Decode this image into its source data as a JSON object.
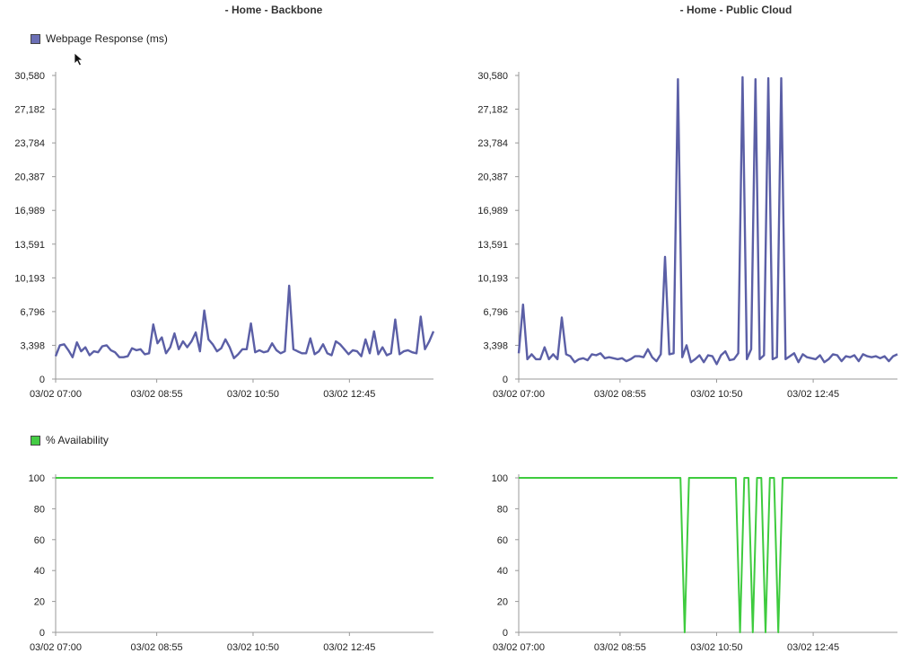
{
  "panels": [
    {
      "title": "- Home - Backbone"
    },
    {
      "title": "- Home - Public Cloud"
    }
  ],
  "legends": {
    "response": {
      "label": "Webpage Response (ms)",
      "color": "#6b6fb5"
    },
    "availability": {
      "label": "% Availability",
      "color": "#44cc44"
    }
  },
  "colors": {
    "response_line": "#5b5fa6",
    "availability_line": "#3ecb3e",
    "axis": "#999999"
  },
  "chart_data": [
    {
      "type": "line",
      "panel": "Backbone",
      "series": [
        {
          "name": "Webpage Response (ms)",
          "values": [
            2300,
            3400,
            3500,
            2900,
            2200,
            3700,
            2800,
            3200,
            2400,
            2800,
            2700,
            3300,
            3400,
            2900,
            2700,
            2200,
            2200,
            2300,
            3100,
            2900,
            3000,
            2500,
            2600,
            5500,
            3600,
            4200,
            2600,
            3200,
            4600,
            3000,
            3800,
            3200,
            3800,
            4700,
            2800,
            6900,
            4000,
            3500,
            2800,
            3100,
            4000,
            3200,
            2100,
            2500,
            3000,
            3000,
            5600,
            2700,
            2900,
            2700,
            2800,
            3600,
            2900,
            2600,
            2800,
            9400,
            3000,
            2800,
            2600,
            2600,
            4100,
            2500,
            2800,
            3500,
            2600,
            2400,
            3800,
            3500,
            3000,
            2500,
            2900,
            2800,
            2300,
            4000,
            2600,
            4800,
            2500,
            3200,
            2400,
            2600,
            6000,
            2500,
            2800,
            2900,
            2700,
            2600,
            6300,
            3000,
            3800,
            4800
          ]
        }
      ],
      "x_ticks": [
        "03/02 07:00",
        "03/02 08:55",
        "03/02 10:50",
        "03/02 12:45"
      ],
      "y_ticks": [
        "0",
        "3,398",
        "6,796",
        "10,193",
        "13,591",
        "16,989",
        "20,387",
        "23,784",
        "27,182",
        "30,580"
      ],
      "ylim": [
        0,
        30580
      ]
    },
    {
      "type": "line",
      "panel": "Public Cloud",
      "series": [
        {
          "name": "Webpage Response (ms)",
          "values": [
            2600,
            7500,
            2000,
            2500,
            2000,
            2000,
            3200,
            2000,
            2500,
            2000,
            6200,
            2500,
            2300,
            1700,
            2000,
            2100,
            1900,
            2500,
            2400,
            2600,
            2100,
            2200,
            2100,
            2000,
            2100,
            1800,
            2000,
            2300,
            2300,
            2200,
            3000,
            2200,
            1800,
            2500,
            12300,
            2500,
            2600,
            30200,
            2200,
            3400,
            1700,
            2000,
            2400,
            1700,
            2400,
            2300,
            1500,
            2400,
            2800,
            1900,
            2000,
            2600,
            30400,
            2000,
            3000,
            30200,
            2000,
            2400,
            30300,
            2000,
            2200,
            30300,
            2000,
            2300,
            2600,
            1700,
            2500,
            2200,
            2100,
            2000,
            2400,
            1700,
            2000,
            2500,
            2400,
            1800,
            2300,
            2200,
            2400,
            1800,
            2500,
            2300,
            2200,
            2300,
            2100,
            2300,
            1800,
            2300,
            2500
          ]
        }
      ],
      "x_ticks": [
        "03/02 07:00",
        "03/02 08:55",
        "03/02 10:50",
        "03/02 12:45"
      ],
      "y_ticks": [
        "0",
        "3,398",
        "6,796",
        "10,193",
        "13,591",
        "16,989",
        "20,387",
        "23,784",
        "27,182",
        "30,580"
      ],
      "ylim": [
        0,
        30580
      ]
    },
    {
      "type": "line",
      "panel": "Backbone",
      "series": [
        {
          "name": "% Availability",
          "values": [
            100,
            100
          ]
        }
      ],
      "x_ticks": [
        "03/02 07:00",
        "03/02 08:55",
        "03/02 10:50",
        "03/02 12:45"
      ],
      "y_ticks": [
        "0",
        "20",
        "40",
        "60",
        "80",
        "100"
      ],
      "ylim": [
        0,
        100
      ]
    },
    {
      "type": "line",
      "panel": "Public Cloud",
      "series": [
        {
          "name": "% Availability",
          "points": [
            [
              0,
              100
            ],
            [
              38,
              100
            ],
            [
              39,
              0
            ],
            [
              40,
              100
            ],
            [
              51,
              100
            ],
            [
              52,
              0
            ],
            [
              53,
              100
            ],
            [
              54,
              100
            ],
            [
              55,
              0
            ],
            [
              56,
              100
            ],
            [
              57,
              100
            ],
            [
              58,
              0
            ],
            [
              59,
              100
            ],
            [
              60,
              100
            ],
            [
              61,
              0
            ],
            [
              62,
              100
            ],
            [
              89,
              100
            ]
          ]
        }
      ],
      "x_ticks": [
        "03/02 07:00",
        "03/02 08:55",
        "03/02 10:50",
        "03/02 12:45"
      ],
      "y_ticks": [
        "0",
        "20",
        "40",
        "60",
        "80",
        "100"
      ],
      "ylim": [
        0,
        100
      ]
    }
  ]
}
